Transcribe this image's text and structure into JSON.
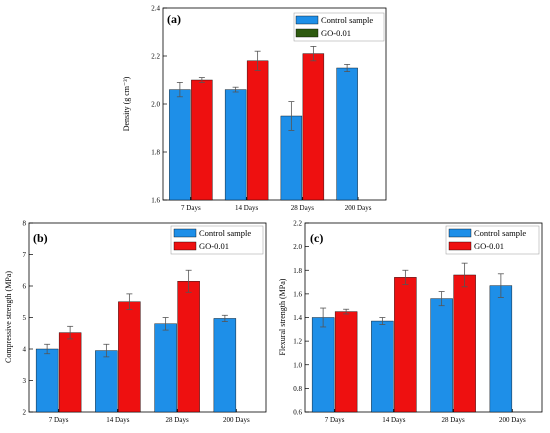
{
  "colors": {
    "control": "#1e8fe8",
    "go": "#ee1010",
    "go_legend": "#2e5a10",
    "error_bar": "#555555"
  },
  "chart_data": [
    {
      "id": "a",
      "type": "bar",
      "panel_label": "(a)",
      "categories": [
        "7 Days",
        "14 Days",
        "28 Days",
        "200 Days"
      ],
      "ylabel": "Density (g cm⁻³)",
      "ylim": [
        1.6,
        2.4
      ],
      "yticks": [
        1.6,
        1.8,
        2.0,
        2.2,
        2.4
      ],
      "ytick_labels": [
        "1.6",
        "1.8",
        "2.0",
        "2.2",
        "2.4"
      ],
      "legend_position": "top-right",
      "series": [
        {
          "name": "Control sample",
          "key": "control",
          "values": [
            2.06,
            2.06,
            1.95,
            2.15
          ],
          "errors": [
            0.03,
            0.01,
            0.06,
            0.015
          ]
        },
        {
          "name": "GO-0.01",
          "key": "go",
          "values": [
            2.1,
            2.18,
            2.21,
            null
          ],
          "errors": [
            0.01,
            0.04,
            0.03,
            null
          ],
          "legend_color_key": "go_legend"
        }
      ]
    },
    {
      "id": "b",
      "type": "bar",
      "panel_label": "(b)",
      "categories": [
        "7 Days",
        "14 Days",
        "28 Days",
        "200 Days"
      ],
      "ylabel": "Compressive strength (MPa)",
      "ylim": [
        2,
        8
      ],
      "yticks": [
        2,
        3,
        4,
        5,
        6,
        7,
        8
      ],
      "ytick_labels": [
        "2",
        "3",
        "4",
        "5",
        "6",
        "7",
        "8"
      ],
      "legend_position": "top-right",
      "series": [
        {
          "name": "Control sample",
          "key": "control",
          "values": [
            4.0,
            3.95,
            4.8,
            4.97
          ],
          "errors": [
            0.15,
            0.2,
            0.2,
            0.1
          ]
        },
        {
          "name": "GO-0.01",
          "key": "go",
          "values": [
            4.52,
            5.5,
            6.15,
            null
          ],
          "errors": [
            0.2,
            0.25,
            0.35,
            null
          ]
        }
      ]
    },
    {
      "id": "c",
      "type": "bar",
      "panel_label": "(c)",
      "categories": [
        "7 Days",
        "14 Days",
        "28 Days",
        "200 Days"
      ],
      "ylabel": "Flexural strength (MPa)",
      "ylim": [
        0.6,
        2.2
      ],
      "yticks": [
        0.6,
        0.8,
        1.0,
        1.2,
        1.4,
        1.6,
        1.8,
        2.0,
        2.2
      ],
      "ytick_labels": [
        "0.6",
        "0.8",
        "1.0",
        "1.2",
        "1.4",
        "1.6",
        "1.8",
        "2.0",
        "2.2"
      ],
      "legend_position": "top-right",
      "series": [
        {
          "name": "Control sample",
          "key": "control",
          "values": [
            1.4,
            1.37,
            1.56,
            1.67
          ],
          "errors": [
            0.08,
            0.03,
            0.06,
            0.1
          ]
        },
        {
          "name": "GO-0.01",
          "key": "go",
          "values": [
            1.45,
            1.74,
            1.76,
            null
          ],
          "errors": [
            0.02,
            0.06,
            0.1,
            null
          ]
        }
      ]
    }
  ]
}
